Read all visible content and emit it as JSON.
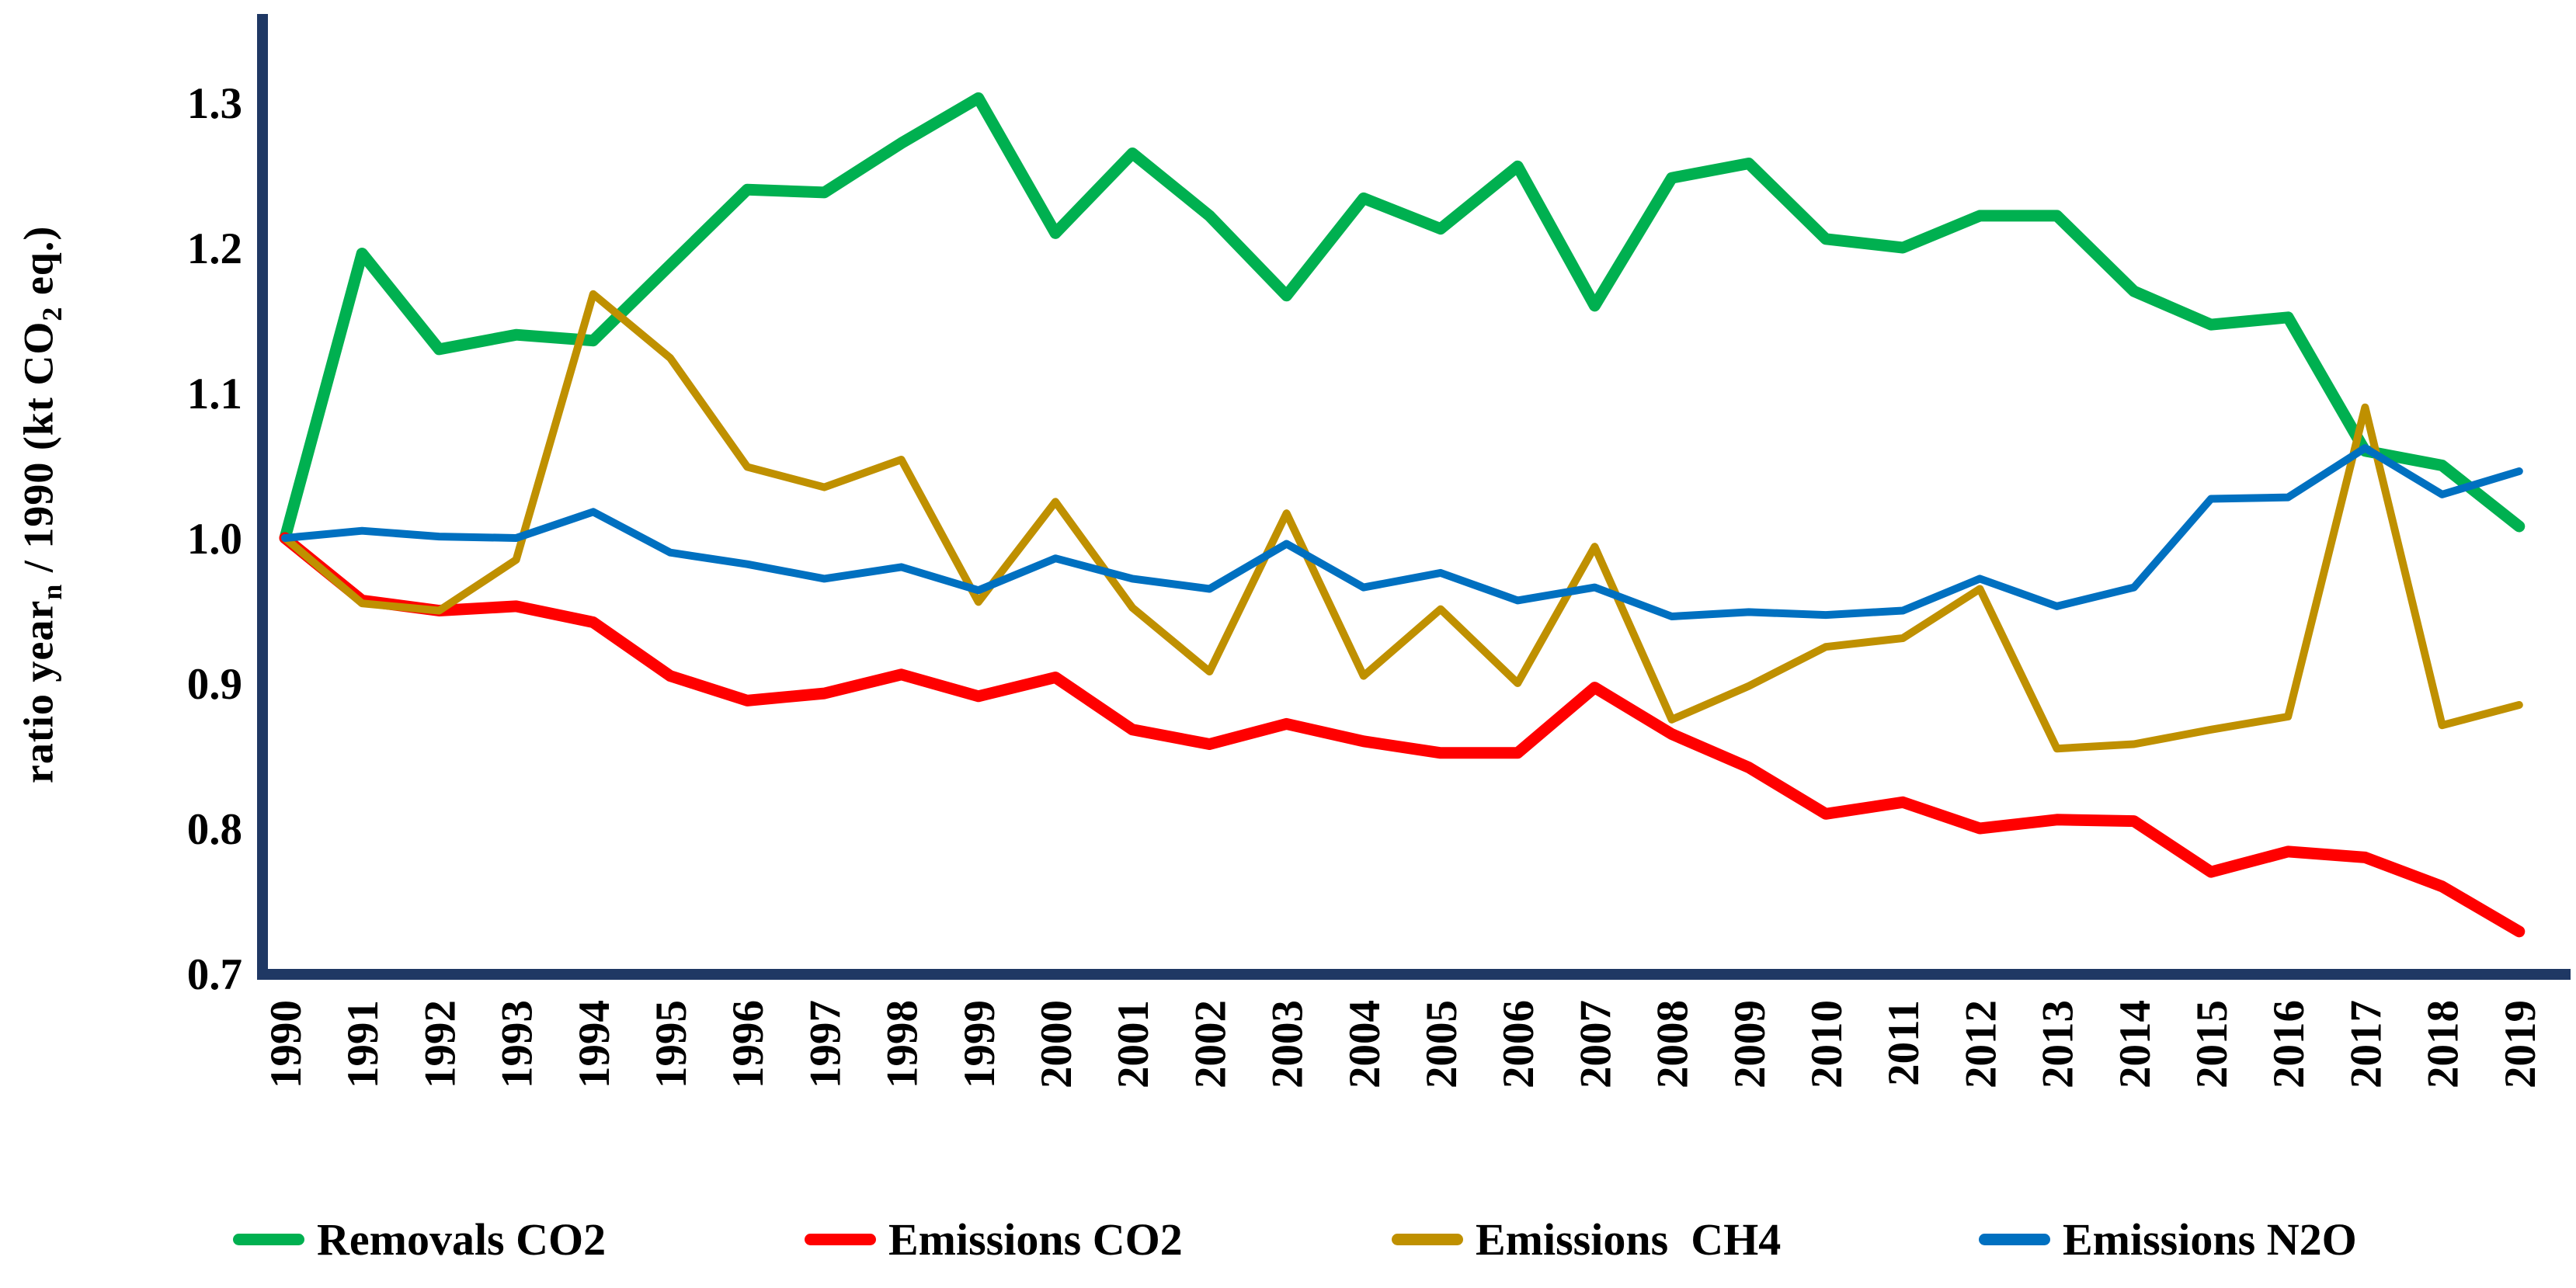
{
  "figure": {
    "background": "#ffffff",
    "axis_color": "#1F3864",
    "text_color": "#000000"
  },
  "y_axis": {
    "title_parts": {
      "p1": "ratio year",
      "sub1": "n",
      "p2": " / 1990 (kt CO",
      "sub2": "2",
      "p3": " eq.)"
    },
    "tick_labels": [
      "1.3",
      "1.2",
      "1.1",
      "1.0",
      "0.9",
      "0.8",
      "0.7"
    ]
  },
  "chart_data": {
    "type": "line",
    "title": "",
    "xlabel": "",
    "ylabel": "ratio yearn / 1990 (kt CO2 eq.)",
    "ylim": [
      0.7,
      1.35
    ],
    "yticks": [
      1.3,
      1.2,
      1.1,
      1.0,
      0.9,
      0.8,
      0.7
    ],
    "grid": false,
    "legend_position": "bottom",
    "x": [
      1990,
      1991,
      1992,
      1993,
      1994,
      1995,
      1996,
      1997,
      1998,
      1999,
      2000,
      2001,
      2002,
      2003,
      2004,
      2005,
      2006,
      2007,
      2008,
      2009,
      2010,
      2011,
      2012,
      2013,
      2014,
      2015,
      2016,
      2017,
      2018,
      2019
    ],
    "series": [
      {
        "name": "Removals CO2",
        "color": "#00B050",
        "stroke_width": 15,
        "values": [
          1.0,
          1.196,
          1.13,
          1.14,
          1.136,
          1.188,
          1.24,
          1.238,
          1.272,
          1.303,
          1.21,
          1.265,
          1.222,
          1.167,
          1.234,
          1.213,
          1.256,
          1.16,
          1.248,
          1.258,
          1.206,
          1.2,
          1.222,
          1.222,
          1.17,
          1.147,
          1.152,
          1.06,
          1.05,
          1.008
        ]
      },
      {
        "name": "Emissions CO2",
        "color": "#FF0000",
        "stroke_width": 15,
        "values": [
          1.0,
          0.957,
          0.95,
          0.953,
          0.942,
          0.905,
          0.888,
          0.893,
          0.906,
          0.891,
          0.904,
          0.868,
          0.858,
          0.872,
          0.86,
          0.852,
          0.852,
          0.897,
          0.865,
          0.842,
          0.81,
          0.818,
          0.8,
          0.806,
          0.805,
          0.77,
          0.784,
          0.78,
          0.76,
          0.729
        ]
      },
      {
        "name": "Emissions  CH4",
        "color": "#BF9000",
        "stroke_width": 10,
        "values": [
          1.0,
          0.955,
          0.95,
          0.985,
          1.168,
          1.124,
          1.049,
          1.035,
          1.054,
          0.956,
          1.025,
          0.952,
          0.908,
          1.017,
          0.905,
          0.951,
          0.9,
          0.994,
          0.875,
          0.898,
          0.925,
          0.931,
          0.965,
          0.855,
          0.858,
          0.868,
          0.877,
          1.09,
          0.871,
          0.885
        ]
      },
      {
        "name": "Emissions N2O",
        "color": "#0070C0",
        "stroke_width": 10,
        "values": [
          1.0,
          1.005,
          1.001,
          1.0,
          1.018,
          0.99,
          0.982,
          0.972,
          0.98,
          0.964,
          0.986,
          0.972,
          0.965,
          0.996,
          0.966,
          0.976,
          0.957,
          0.966,
          0.946,
          0.949,
          0.947,
          0.95,
          0.972,
          0.953,
          0.966,
          1.027,
          1.028,
          1.062,
          1.03,
          1.046
        ]
      }
    ]
  },
  "legend": {
    "items": [
      {
        "label": "Removals CO2",
        "color": "#00B050",
        "x": 300
      },
      {
        "label": "Emissions CO2",
        "color": "#FF0000",
        "x": 1036
      },
      {
        "label": "Emissions  CH4",
        "color": "#BF9000",
        "x": 1792
      },
      {
        "label": "Emissions N2O",
        "color": "#0070C0",
        "x": 2548
      }
    ]
  }
}
